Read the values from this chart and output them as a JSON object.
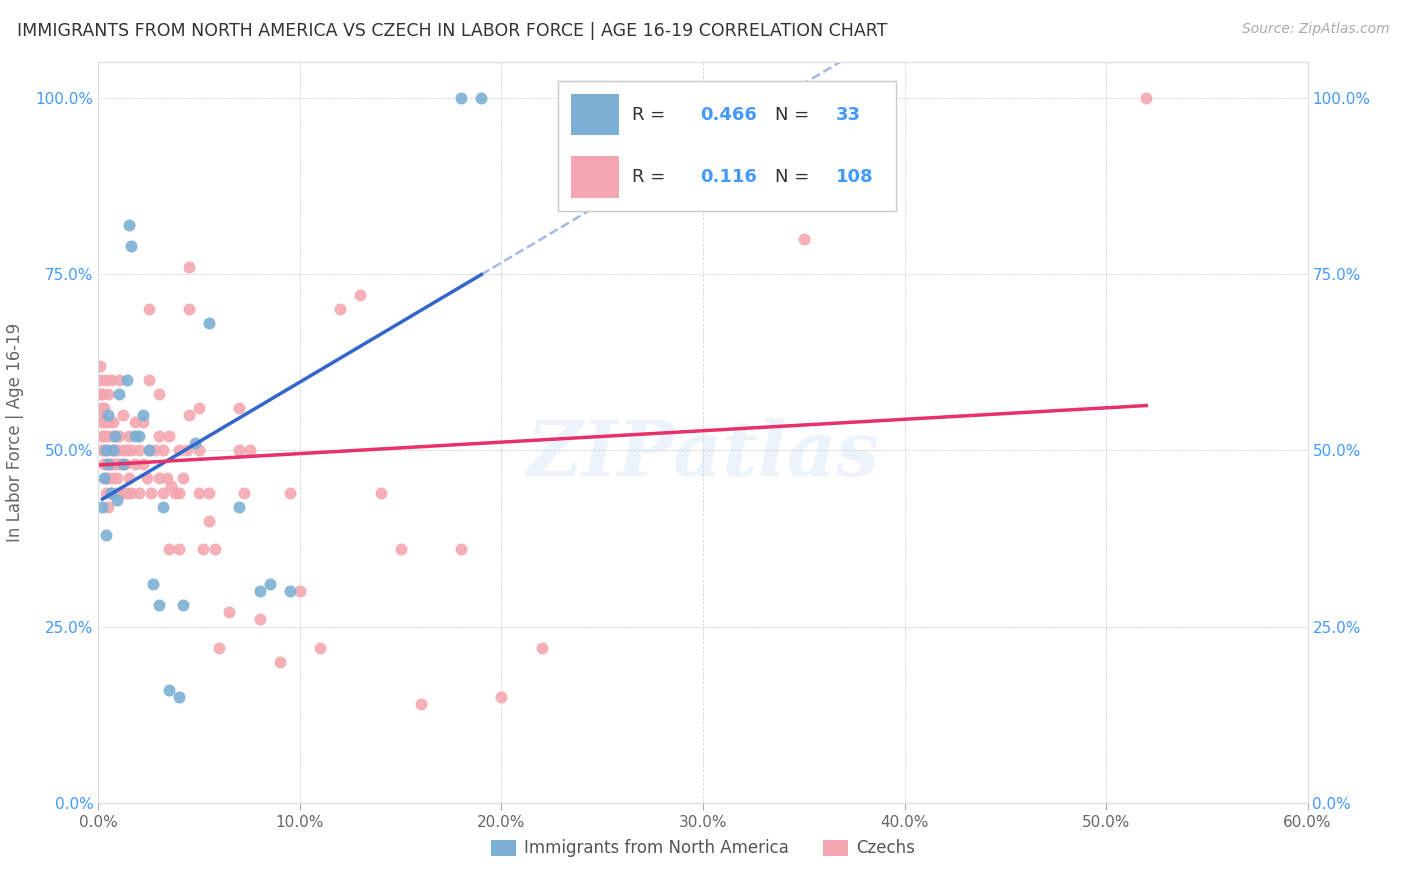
{
  "title": "IMMIGRANTS FROM NORTH AMERICA VS CZECH IN LABOR FORCE | AGE 16-19 CORRELATION CHART",
  "source": "Source: ZipAtlas.com",
  "ylabel": "In Labor Force | Age 16-19",
  "xlim": [
    0.0,
    0.6
  ],
  "ylim": [
    0.0,
    1.05
  ],
  "xticks": [
    0.0,
    0.1,
    0.2,
    0.3,
    0.4,
    0.5,
    0.6
  ],
  "xticklabels": [
    "0.0%",
    "10.0%",
    "20.0%",
    "30.0%",
    "40.0%",
    "50.0%",
    "60.0%"
  ],
  "yticks": [
    0.0,
    0.25,
    0.5,
    0.75,
    1.0
  ],
  "yticklabels": [
    "0.0%",
    "25.0%",
    "50.0%",
    "75.0%",
    "100.0%"
  ],
  "blue_R": "0.466",
  "blue_N": "33",
  "pink_R": "0.116",
  "pink_N": "108",
  "blue_color": "#7BAFD4",
  "pink_color": "#F4A7B0",
  "trendline_blue": "#3366CC",
  "trendline_pink": "#E8306A",
  "text_dark": "#333333",
  "text_blue": "#4499FF",
  "text_gray": "#777777",
  "watermark": "ZIPatlas",
  "blue_scatter": [
    [
      0.002,
      0.42
    ],
    [
      0.003,
      0.46
    ],
    [
      0.004,
      0.38
    ],
    [
      0.004,
      0.5
    ],
    [
      0.005,
      0.48
    ],
    [
      0.005,
      0.55
    ],
    [
      0.006,
      0.44
    ],
    [
      0.007,
      0.5
    ],
    [
      0.008,
      0.52
    ],
    [
      0.009,
      0.43
    ],
    [
      0.01,
      0.58
    ],
    [
      0.012,
      0.48
    ],
    [
      0.014,
      0.6
    ],
    [
      0.015,
      0.82
    ],
    [
      0.016,
      0.79
    ],
    [
      0.018,
      0.52
    ],
    [
      0.02,
      0.52
    ],
    [
      0.022,
      0.55
    ],
    [
      0.025,
      0.5
    ],
    [
      0.027,
      0.31
    ],
    [
      0.03,
      0.28
    ],
    [
      0.032,
      0.42
    ],
    [
      0.035,
      0.16
    ],
    [
      0.04,
      0.15
    ],
    [
      0.042,
      0.28
    ],
    [
      0.048,
      0.51
    ],
    [
      0.055,
      0.68
    ],
    [
      0.07,
      0.42
    ],
    [
      0.08,
      0.3
    ],
    [
      0.085,
      0.31
    ],
    [
      0.095,
      0.3
    ],
    [
      0.18,
      1.0
    ],
    [
      0.19,
      1.0
    ]
  ],
  "pink_scatter": [
    [
      0.001,
      0.55
    ],
    [
      0.001,
      0.58
    ],
    [
      0.001,
      0.6
    ],
    [
      0.001,
      0.62
    ],
    [
      0.002,
      0.5
    ],
    [
      0.002,
      0.52
    ],
    [
      0.002,
      0.54
    ],
    [
      0.002,
      0.56
    ],
    [
      0.002,
      0.58
    ],
    [
      0.003,
      0.48
    ],
    [
      0.003,
      0.5
    ],
    [
      0.003,
      0.52
    ],
    [
      0.003,
      0.54
    ],
    [
      0.003,
      0.56
    ],
    [
      0.004,
      0.44
    ],
    [
      0.004,
      0.46
    ],
    [
      0.004,
      0.48
    ],
    [
      0.004,
      0.52
    ],
    [
      0.004,
      0.6
    ],
    [
      0.005,
      0.42
    ],
    [
      0.005,
      0.46
    ],
    [
      0.005,
      0.5
    ],
    [
      0.005,
      0.54
    ],
    [
      0.005,
      0.58
    ],
    [
      0.006,
      0.44
    ],
    [
      0.006,
      0.48
    ],
    [
      0.006,
      0.52
    ],
    [
      0.006,
      0.6
    ],
    [
      0.007,
      0.46
    ],
    [
      0.007,
      0.5
    ],
    [
      0.007,
      0.54
    ],
    [
      0.008,
      0.44
    ],
    [
      0.008,
      0.48
    ],
    [
      0.008,
      0.52
    ],
    [
      0.009,
      0.46
    ],
    [
      0.009,
      0.5
    ],
    [
      0.01,
      0.44
    ],
    [
      0.01,
      0.48
    ],
    [
      0.01,
      0.52
    ],
    [
      0.01,
      0.6
    ],
    [
      0.012,
      0.44
    ],
    [
      0.012,
      0.5
    ],
    [
      0.012,
      0.55
    ],
    [
      0.013,
      0.48
    ],
    [
      0.014,
      0.44
    ],
    [
      0.014,
      0.5
    ],
    [
      0.015,
      0.46
    ],
    [
      0.015,
      0.52
    ],
    [
      0.016,
      0.44
    ],
    [
      0.016,
      0.5
    ],
    [
      0.018,
      0.48
    ],
    [
      0.018,
      0.54
    ],
    [
      0.02,
      0.44
    ],
    [
      0.02,
      0.5
    ],
    [
      0.022,
      0.48
    ],
    [
      0.022,
      0.54
    ],
    [
      0.024,
      0.46
    ],
    [
      0.025,
      0.5
    ],
    [
      0.025,
      0.6
    ],
    [
      0.025,
      0.7
    ],
    [
      0.026,
      0.44
    ],
    [
      0.028,
      0.5
    ],
    [
      0.03,
      0.46
    ],
    [
      0.03,
      0.52
    ],
    [
      0.03,
      0.58
    ],
    [
      0.032,
      0.44
    ],
    [
      0.032,
      0.5
    ],
    [
      0.034,
      0.46
    ],
    [
      0.035,
      0.36
    ],
    [
      0.035,
      0.52
    ],
    [
      0.036,
      0.45
    ],
    [
      0.038,
      0.44
    ],
    [
      0.04,
      0.36
    ],
    [
      0.04,
      0.44
    ],
    [
      0.04,
      0.5
    ],
    [
      0.042,
      0.46
    ],
    [
      0.044,
      0.5
    ],
    [
      0.045,
      0.55
    ],
    [
      0.045,
      0.7
    ],
    [
      0.045,
      0.76
    ],
    [
      0.05,
      0.44
    ],
    [
      0.05,
      0.5
    ],
    [
      0.05,
      0.56
    ],
    [
      0.052,
      0.36
    ],
    [
      0.055,
      0.4
    ],
    [
      0.055,
      0.44
    ],
    [
      0.058,
      0.36
    ],
    [
      0.06,
      0.22
    ],
    [
      0.065,
      0.27
    ],
    [
      0.07,
      0.5
    ],
    [
      0.07,
      0.56
    ],
    [
      0.072,
      0.44
    ],
    [
      0.075,
      0.5
    ],
    [
      0.08,
      0.26
    ],
    [
      0.09,
      0.2
    ],
    [
      0.095,
      0.44
    ],
    [
      0.1,
      0.3
    ],
    [
      0.11,
      0.22
    ],
    [
      0.12,
      0.7
    ],
    [
      0.13,
      0.72
    ],
    [
      0.14,
      0.44
    ],
    [
      0.15,
      0.36
    ],
    [
      0.16,
      0.14
    ],
    [
      0.18,
      0.36
    ],
    [
      0.2,
      0.15
    ],
    [
      0.22,
      0.22
    ],
    [
      0.35,
      0.8
    ],
    [
      0.52,
      1.0
    ]
  ]
}
